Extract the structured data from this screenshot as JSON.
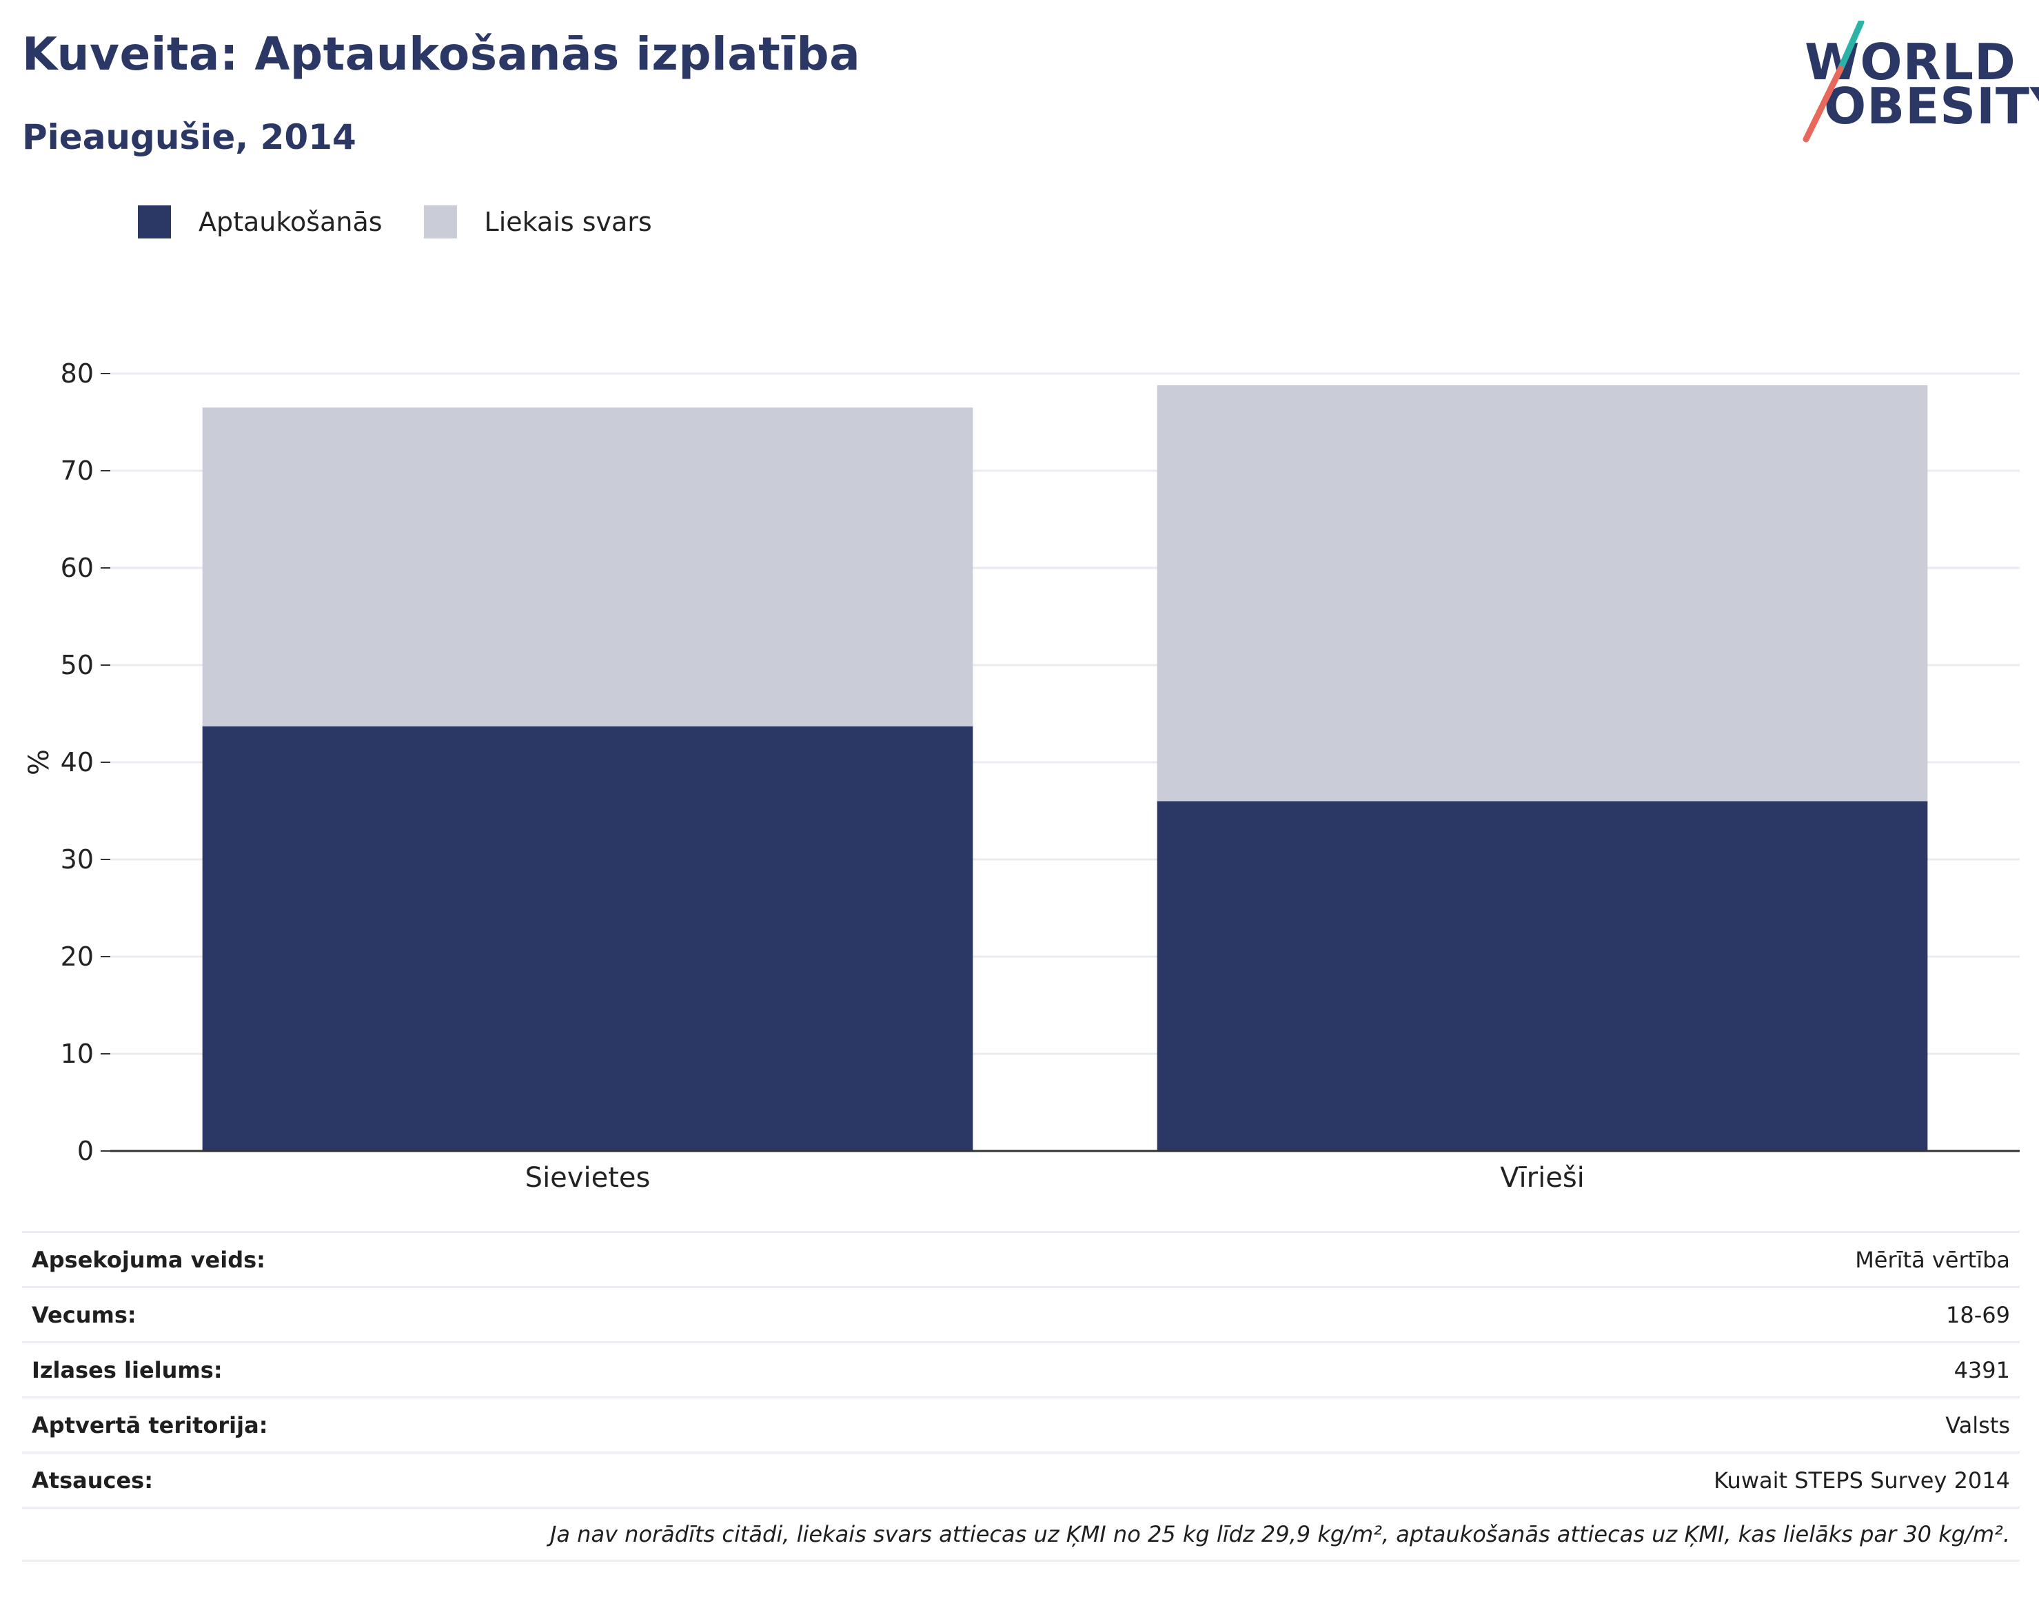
{
  "header": {
    "title": "Kuveita: Aptaukošanās izplatība",
    "subtitle": "Pieaugušie, 2014"
  },
  "logo": {
    "line1": "WORLD",
    "line2": "OBESITY",
    "icon": "world-obesity-logo-icon",
    "colors": {
      "text": "#2b3764",
      "slash_top": "#2bb3a8",
      "slash_bottom": "#e8695c"
    }
  },
  "legend": [
    {
      "label": "Aptaukošanās",
      "color": "#2b3764"
    },
    {
      "label": "Liekais svars",
      "color": "#cacdd8"
    }
  ],
  "chart_data": {
    "type": "bar",
    "stacked": true,
    "categories": [
      "Sievietes",
      "Vīrieši"
    ],
    "series": [
      {
        "name": "Aptaukošanās",
        "values": [
          43.7,
          36.0
        ],
        "color": "#2b3764"
      },
      {
        "name": "Liekais svars",
        "values": [
          32.8,
          42.8
        ],
        "color": "#cacdd8"
      }
    ],
    "ylabel": "%",
    "ylim": [
      0,
      80
    ],
    "yticks": [
      0,
      10,
      20,
      30,
      40,
      50,
      60,
      70,
      80
    ],
    "grid": true,
    "legend_position": "top-left"
  },
  "info": {
    "rows": [
      {
        "label": "Apsekojuma veids:",
        "value": "Mērītā vērtība"
      },
      {
        "label": "Vecums:",
        "value": "18-69"
      },
      {
        "label": "Izlases lielums:",
        "value": "4391"
      },
      {
        "label": "Aptvertā teritorija:",
        "value": "Valsts"
      },
      {
        "label": "Atsauces:",
        "value": "Kuwait STEPS Survey 2014"
      }
    ],
    "note": "Ja nav norādīts citādi, liekais svars attiecas uz ĶMI no 25 kg līdz 29,9 kg/m², aptaukošanās attiecas uz ĶMI, kas lielāks par 30 kg/m²."
  }
}
